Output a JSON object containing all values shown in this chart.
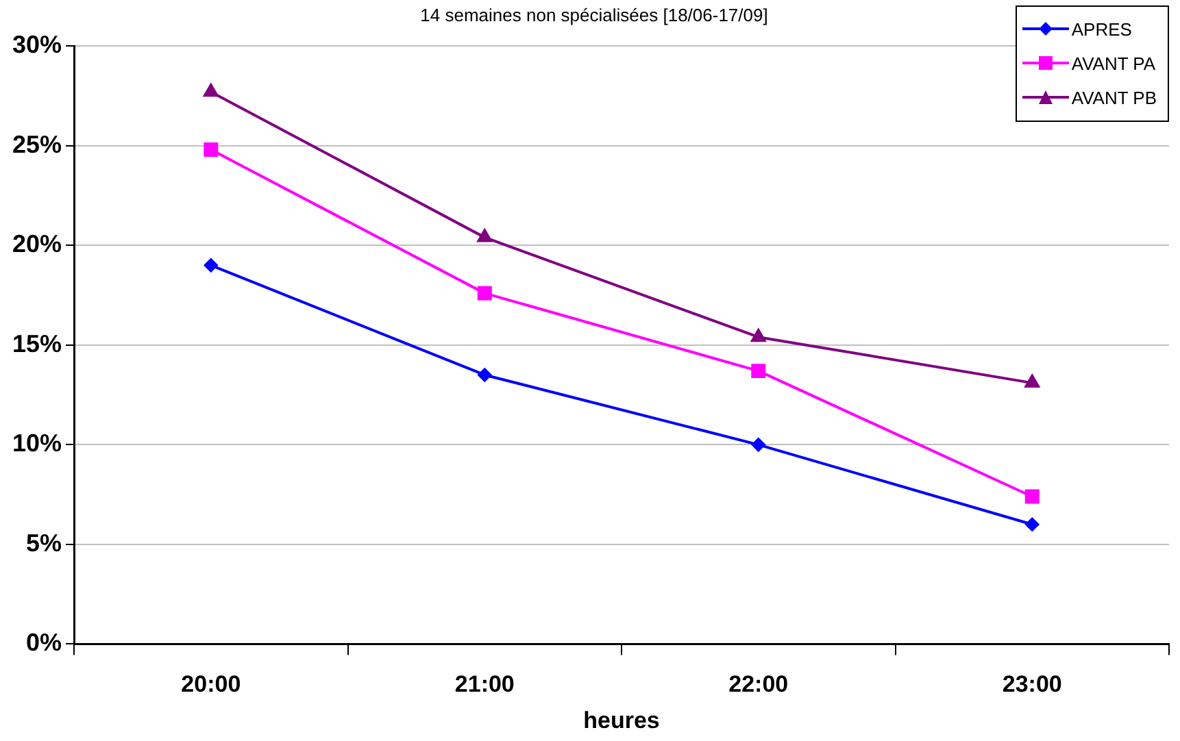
{
  "chart_data": {
    "type": "line",
    "title": "14 semaines non spécialisées [18/06-17/09]",
    "xlabel": "heures",
    "categories": [
      "20:00",
      "21:00",
      "22:00",
      "23:00"
    ],
    "series": [
      {
        "name": "APRES",
        "color": "#0000ff",
        "marker": "diamond",
        "values": [
          19.0,
          13.5,
          10.0,
          6.0
        ]
      },
      {
        "name": "AVANT PA",
        "color": "#ff00ff",
        "marker": "square",
        "values": [
          24.8,
          17.6,
          13.7,
          7.4
        ]
      },
      {
        "name": "AVANT PB",
        "color": "#800080",
        "marker": "triangle",
        "values": [
          27.7,
          20.4,
          15.4,
          13.1
        ]
      }
    ],
    "ylim": [
      0,
      30
    ],
    "yticks": [
      {
        "value": 0,
        "label": "0%"
      },
      {
        "value": 5,
        "label": "5%"
      },
      {
        "value": 10,
        "label": "10%"
      },
      {
        "value": 15,
        "label": "15%"
      },
      {
        "value": 20,
        "label": "20%"
      },
      {
        "value": 25,
        "label": "25%"
      },
      {
        "value": 30,
        "label": "30%"
      }
    ],
    "grid": "y",
    "legend": "top right",
    "line_style": "solid"
  }
}
